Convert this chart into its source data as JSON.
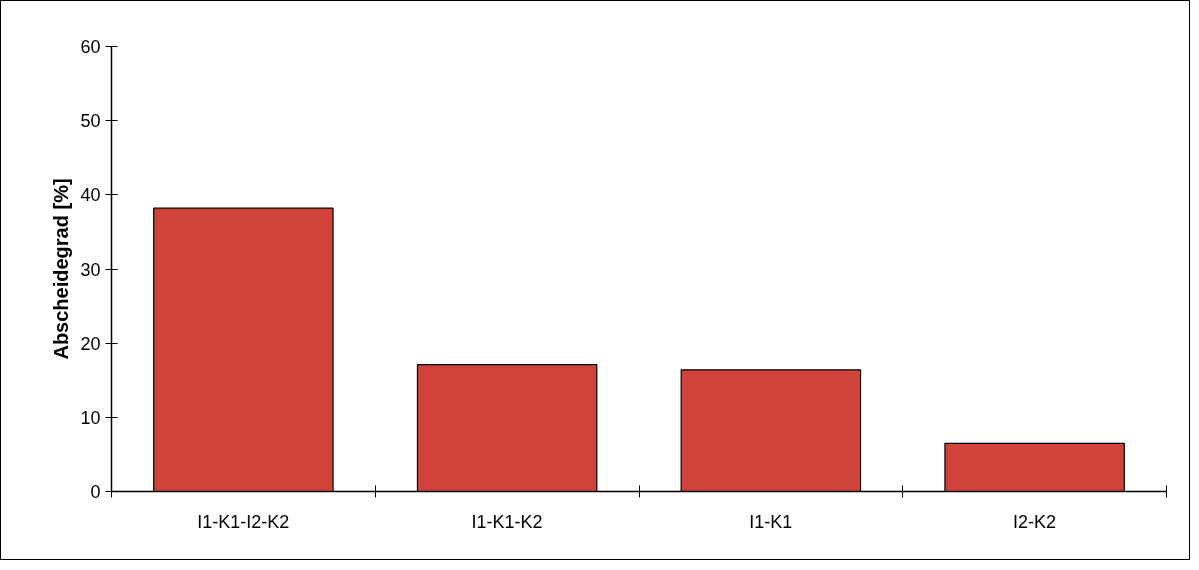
{
  "chart_data": {
    "type": "bar",
    "ylabel": "Abscheidegrad [%]",
    "categories": [
      "I1-K1-I2-K2",
      "I1-K1-K2",
      "I1-K1",
      "I2-K2"
    ],
    "values": [
      38.2,
      17.1,
      16.4,
      6.5
    ],
    "color": "#d0433a",
    "ylim": [
      0,
      60
    ],
    "yticks": [
      0,
      10,
      20,
      30,
      40,
      50,
      60
    ],
    "grid": false
  }
}
